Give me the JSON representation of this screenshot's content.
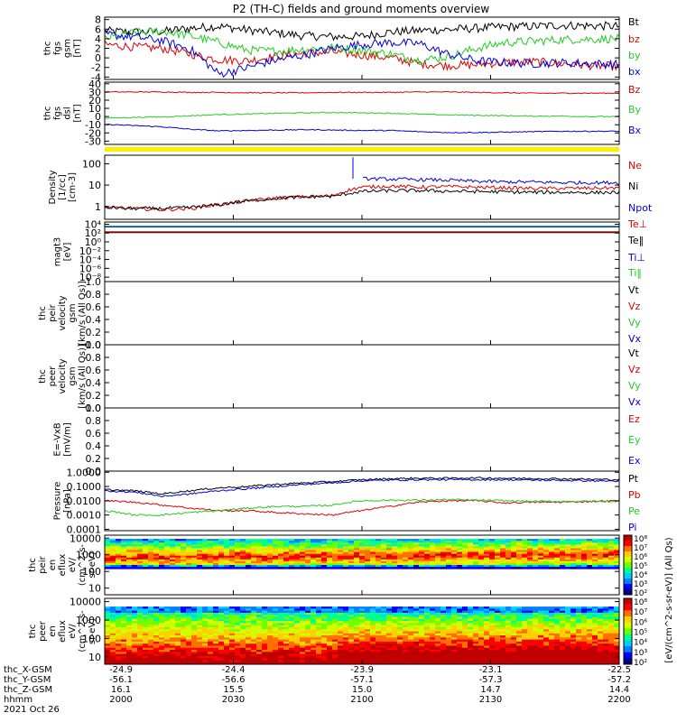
{
  "title": "P2 (TH-C) fields and ground moments overview",
  "chart_data": {
    "type": "line",
    "title": "P2 (TH-C) fields and ground moments overview",
    "xaxis": {
      "tick_labels": [
        {
          "x": "-24.9",
          "y": "-56.1",
          "z": "16.1",
          "hhmm": "2000"
        },
        {
          "x": "-24.4",
          "y": "-56.6",
          "z": "15.5",
          "hhmm": "2030"
        },
        {
          "x": "-23.9",
          "y": "-57.1",
          "z": "15.0",
          "hhmm": "2100"
        },
        {
          "x": "-23.1",
          "y": "-57.3",
          "z": "14.7",
          "hhmm": "2130"
        },
        {
          "x": "-22.5",
          "y": "-57.2",
          "z": "14.4",
          "hhmm": "2200"
        }
      ],
      "row_labels": [
        "thc_X-GSM",
        "thc_Y-GSM",
        "thc_Z-GSM",
        "hhmm"
      ],
      "date_label": "2021 Oct 26"
    },
    "panels": [
      {
        "id": "fgs-gsm",
        "ylabel": [
          "thc",
          "fgs",
          "gsm",
          "[nT]"
        ],
        "ticks": [
          "8",
          "6",
          "4",
          "2",
          "0",
          "-2",
          "-4"
        ],
        "ylim": [
          -4.5,
          8.5
        ],
        "legend": [
          "Bt",
          "bz",
          "by",
          "bx"
        ],
        "series": [
          {
            "name": "Bt",
            "values": [
              5.6,
              5.4,
              5.5,
              6.2,
              6.6,
              5.8,
              5.2,
              4.6,
              4.4,
              4.5,
              5.4,
              5.7,
              5.9,
              6.2,
              6.5,
              6.6,
              6.8,
              6.7,
              6.6
            ]
          },
          {
            "name": "bz",
            "values": [
              2.8,
              2.3,
              2.0,
              0.8,
              -0.4,
              -0.6,
              0.3,
              1.0,
              1.2,
              0.6,
              0.0,
              -1.2,
              -1.6,
              -1.4,
              -1.0,
              -0.8,
              -1.2,
              -1.6,
              -1.8
            ]
          },
          {
            "name": "by",
            "values": [
              4.0,
              5.2,
              5.6,
              4.6,
              3.2,
              1.6,
              1.4,
              1.8,
              2.2,
              1.6,
              0.8,
              -0.5,
              0.2,
              2.0,
              3.2,
              3.5,
              3.8,
              3.9,
              4.0
            ]
          },
          {
            "name": "bx",
            "values": [
              4.9,
              4.4,
              3.6,
              1.8,
              -3.4,
              -2.0,
              -0.4,
              0.6,
              2.0,
              2.8,
              3.2,
              3.0,
              0.8,
              -0.6,
              -1.0,
              -1.2,
              -1.0,
              -1.2,
              -1.4
            ]
          }
        ]
      },
      {
        "id": "fgs-dsl",
        "ylabel": [
          "thc",
          "fgs",
          "dsl",
          "[nT]"
        ],
        "ticks": [
          "40",
          "30",
          "20",
          "10",
          "0",
          "-10",
          "-20",
          "-30"
        ],
        "ylim": [
          -34,
          42
        ],
        "legend": [
          "Bz",
          "By",
          "Bx"
        ],
        "series": [
          {
            "name": "Bz",
            "values": [
              30,
              30,
              30,
              29.5,
              29.5,
              29,
              29,
              29,
              29.5,
              29.5,
              29.5,
              30,
              30,
              29.5,
              29,
              28.5,
              28.5,
              28.5,
              28.5
            ]
          },
          {
            "name": "By",
            "values": [
              -2,
              -1,
              -0.5,
              1,
              2.5,
              3,
              4,
              4.5,
              5,
              4.5,
              4,
              3,
              2,
              1.5,
              1,
              0.5,
              0.5,
              0,
              0
            ]
          },
          {
            "name": "Bx",
            "values": [
              -9.5,
              -11,
              -12.5,
              -15.5,
              -17.5,
              -17,
              -16.5,
              -16,
              -16.5,
              -17,
              -17,
              -18.5,
              -19.5,
              -19.5,
              -19,
              -18.5,
              -18,
              -18,
              -18
            ]
          }
        ]
      },
      {
        "id": "density",
        "ylabel": [
          "Density",
          "[1/cc]",
          "[cm-3]"
        ],
        "ticks": [
          "100",
          "10",
          "1"
        ],
        "ylim": [
          0.25,
          250
        ],
        "scale": "log",
        "legend": [
          "Ne",
          "Ni",
          "Npot"
        ],
        "series": [
          {
            "name": "Ne",
            "values": [
              0.9,
              0.8,
              0.7,
              0.8,
              1.2,
              1.8,
              2.5,
              2.8,
              3.2,
              8,
              9,
              8,
              8.5,
              8,
              7.5,
              7,
              7,
              7.2,
              7.5
            ]
          },
          {
            "name": "Ni",
            "values": [
              0.9,
              0.8,
              0.8,
              0.9,
              1.2,
              1.8,
              2.4,
              2.8,
              3.0,
              5,
              5.5,
              5.5,
              5.2,
              5,
              4.8,
              4.6,
              4.6,
              4.5,
              4.5
            ]
          },
          {
            "name": "Npot",
            "values": [
              null,
              null,
              null,
              null,
              null,
              null,
              null,
              null,
              null,
              20,
              19,
              18,
              17,
              15,
              14,
              14,
              13,
              13,
              13
            ]
          }
        ]
      },
      {
        "id": "temperature",
        "ylabel": [
          "magt3",
          "[eV]"
        ],
        "ticks": [
          "10⁴",
          "10²",
          "10⁰",
          "10⁻²",
          "10⁻⁴",
          "10⁻⁶",
          "10⁻⁸"
        ],
        "ylim": [
          -9,
          4.5
        ],
        "scale": "log",
        "legend": [
          "Te⊥",
          "Te‖",
          "Ti⊥",
          "Ti‖"
        ],
        "series": [
          {
            "name": "Ti‖",
            "values": [
              3.6,
              3.6,
              3.6,
              3.6,
              3.6,
              3.6,
              3.6,
              3.6,
              3.6,
              3.6,
              3.6,
              3.6,
              3.6,
              3.6,
              3.6,
              3.6,
              3.6,
              3.6,
              3.6
            ]
          },
          {
            "name": "Ti⊥",
            "values": [
              3.4,
              3.4,
              3.4,
              3.4,
              3.4,
              3.4,
              3.4,
              3.4,
              3.4,
              3.4,
              3.4,
              3.4,
              3.4,
              3.4,
              3.4,
              3.4,
              3.4,
              3.4,
              3.4
            ]
          },
          {
            "name": "Te⊥",
            "values": [
              2.3,
              2.3,
              2.3,
              2.3,
              2.3,
              2.3,
              2.3,
              2.3,
              2.3,
              2.3,
              2.3,
              2.3,
              2.3,
              2.3,
              2.3,
              2.3,
              2.3,
              2.3,
              2.3
            ]
          },
          {
            "name": "Te‖",
            "values": [
              2.1,
              2.1,
              2.1,
              2.1,
              2.1,
              2.1,
              2.1,
              2.1,
              2.1,
              2.1,
              2.1,
              2.1,
              2.1,
              2.1,
              2.1,
              2.1,
              2.1,
              2.1,
              2.1
            ]
          }
        ]
      },
      {
        "id": "peir-velocity",
        "ylabel": [
          "thc",
          "peir",
          "velocity",
          "gsm",
          "[km/s (All Qs)]"
        ],
        "ticks": [
          "1.0",
          "0.8",
          "0.6",
          "0.4",
          "0.2",
          "0.0"
        ],
        "ylim": [
          0,
          1
        ],
        "legend": [
          "Vt",
          "Vz",
          "Vy",
          "Vx"
        ],
        "series": []
      },
      {
        "id": "peer-velocity",
        "ylabel": [
          "thc",
          "peer",
          "velocity",
          "gsm",
          "[km/s (All Qs)]"
        ],
        "ticks": [
          "1.0",
          "0.8",
          "0.6",
          "0.4",
          "0.2",
          "0.0"
        ],
        "ylim": [
          0,
          1
        ],
        "legend": [
          "Vt",
          "Vz",
          "Vy",
          "Vx"
        ],
        "series": []
      },
      {
        "id": "efield",
        "ylabel": [
          "E=-VxB",
          "[mV/m]"
        ],
        "ticks": [
          "1.0",
          "0.8",
          "0.6",
          "0.4",
          "0.2",
          "0.0"
        ],
        "ylim": [
          0,
          1
        ],
        "legend": [
          "Ez",
          "Ey",
          "Ex"
        ],
        "series": []
      },
      {
        "id": "pressure",
        "ylabel": [
          "Pressure",
          "[nPa]"
        ],
        "ticks": [
          "1.0000",
          "0.1000",
          "0.0100",
          "0.0010",
          "0.0001"
        ],
        "ylim": [
          8e-05,
          1.2
        ],
        "scale": "log",
        "legend": [
          "Pt",
          "Pb",
          "Pe",
          "Pi"
        ],
        "series": [
          {
            "name": "Pt",
            "values": [
              0.06,
              0.05,
              0.03,
              0.05,
              0.08,
              0.1,
              0.14,
              0.18,
              0.22,
              0.3,
              0.35,
              0.38,
              0.38,
              0.4,
              0.38,
              0.36,
              0.35,
              0.32,
              0.3
            ]
          },
          {
            "name": "Pb",
            "values": [
              0.01,
              0.008,
              0.005,
              0.003,
              0.002,
              0.002,
              0.0015,
              0.0012,
              0.001,
              0.002,
              0.004,
              0.008,
              0.01,
              0.01,
              0.007,
              0.008,
              0.008,
              0.009,
              0.01
            ]
          },
          {
            "name": "Pe",
            "values": [
              0.002,
              0.001,
              0.001,
              0.0015,
              0.002,
              0.003,
              0.004,
              0.004,
              0.005,
              0.01,
              0.011,
              0.011,
              0.012,
              0.011,
              0.01,
              0.009,
              0.009,
              0.009,
              0.009
            ]
          },
          {
            "name": "Pi",
            "values": [
              0.05,
              0.04,
              0.02,
              0.03,
              0.05,
              0.07,
              0.1,
              0.14,
              0.18,
              0.25,
              0.28,
              0.3,
              0.3,
              0.3,
              0.3,
              0.28,
              0.27,
              0.25,
              0.24
            ]
          }
        ]
      },
      {
        "id": "peir-eflux",
        "type": "heatmap",
        "ylabel": [
          "thc",
          "peir",
          "en",
          "eflux",
          "eV/",
          "(cm^2-s-",
          "sr-eV)"
        ],
        "ticks": [
          "10000",
          "1000",
          "100",
          "10"
        ],
        "ylim": [
          4,
          15000
        ],
        "scale": "log"
      },
      {
        "id": "peer-eflux",
        "type": "heatmap",
        "ylabel": [
          "thc",
          "peer",
          "en",
          "eflux",
          "eV/",
          "(cm^2-s-",
          "sr-eV)"
        ],
        "ticks": [
          "10000",
          "1000",
          "100",
          "10"
        ],
        "ylim": [
          4,
          15000
        ],
        "scale": "log"
      }
    ],
    "colorbars": [
      {
        "ticks": [
          "10⁸",
          "10⁷",
          "10⁶",
          "10⁵",
          "10⁴",
          "10³",
          "10²"
        ],
        "label": "[eV/(cm^2-s-sr-eV)] (All Qs)"
      },
      {
        "ticks": [
          "10⁸",
          "10⁷",
          "10⁶",
          "10⁵",
          "10⁴",
          "10³",
          "10²"
        ],
        "label": "[eV/(cm^2-s-sr-eV)] (All Qs)"
      }
    ],
    "colors": {
      "black": "#000000",
      "red": "#dd0000",
      "green": "#22cc22",
      "blue": "#0000dd",
      "yellow": "#ffee00"
    }
  }
}
